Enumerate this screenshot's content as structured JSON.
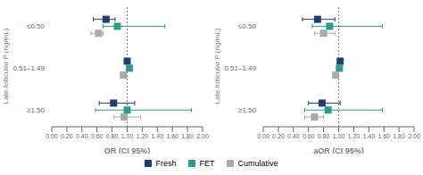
{
  "chart_data": [
    {
      "type": "scatter",
      "x_label": "OR (CI 95%)",
      "y_label": "Late-follicular P (ng/mL)",
      "categories": [
        "≤0.50",
        "0.51–1.49",
        "≥1.50"
      ],
      "series": [
        {
          "name": "Fresh",
          "color": "#1f3f6e",
          "marker": "square",
          "values": [
            0.72,
            1.0,
            0.82
          ],
          "ci_low": [
            0.55,
            1.0,
            0.63
          ],
          "ci_high": [
            0.84,
            1.0,
            1.1
          ]
        },
        {
          "name": "FET",
          "color": "#2a9d8f",
          "marker": "square",
          "values": [
            0.87,
            1.03,
            1.0
          ],
          "ci_low": [
            0.68,
            1.03,
            0.58
          ],
          "ci_high": [
            1.5,
            1.03,
            1.85
          ]
        },
        {
          "name": "Cumulative",
          "color": "#aaaaaa",
          "marker": "square",
          "values": [
            0.62,
            0.95,
            0.96
          ],
          "ci_low": [
            0.52,
            0.95,
            0.82
          ],
          "ci_high": [
            0.68,
            0.95,
            1.18
          ]
        }
      ],
      "ref_line": 1.0,
      "xlim": [
        0.0,
        2.0
      ],
      "xticks": [
        {
          "value": 0.0,
          "label": "0.00"
        },
        {
          "value": 0.2,
          "label": "0.20"
        },
        {
          "value": 0.4,
          "label": "0.40"
        },
        {
          "value": 0.6,
          "label": "0.60"
        },
        {
          "value": 0.8,
          "label": "0.80"
        },
        {
          "value": 1.0,
          "label": "1.00"
        },
        {
          "value": 1.2,
          "label": "1.20"
        },
        {
          "value": 1.4,
          "label": "1.40"
        },
        {
          "value": 1.6,
          "label": "1.60"
        },
        {
          "value": 1.8,
          "label": "1.80"
        },
        {
          "value": 2.0,
          "label": "2.00"
        }
      ],
      "grid": false,
      "legend": "bottom"
    },
    {
      "type": "scatter",
      "x_label": "aOR (CI 95%)",
      "y_label": "Late-follicular P (ng/mL)",
      "categories": [
        "≤0.50",
        "0.51–1.49",
        "≥1.50"
      ],
      "series": [
        {
          "name": "Fresh",
          "color": "#1f3f6e",
          "marker": "square",
          "values": [
            0.72,
            1.02,
            0.78
          ],
          "ci_low": [
            0.52,
            1.02,
            0.6
          ],
          "ci_high": [
            0.95,
            1.02,
            1.02
          ]
        },
        {
          "name": "FET",
          "color": "#2a9d8f",
          "marker": "square",
          "values": [
            0.88,
            1.01,
            0.86
          ],
          "ci_low": [
            0.65,
            1.01,
            0.55
          ],
          "ci_high": [
            1.58,
            1.01,
            1.58
          ]
        },
        {
          "name": "Cumulative",
          "color": "#aaaaaa",
          "marker": "square",
          "values": [
            0.8,
            0.96,
            0.68
          ],
          "ci_low": [
            0.68,
            0.96,
            0.55
          ],
          "ci_high": [
            0.95,
            0.96,
            0.8
          ]
        }
      ],
      "ref_line": 1.0,
      "xlim": [
        0.0,
        2.0
      ],
      "xticks": [
        {
          "value": 0.0,
          "label": "0.00"
        },
        {
          "value": 0.2,
          "label": "0.20"
        },
        {
          "value": 0.4,
          "label": "0.40"
        },
        {
          "value": 0.6,
          "label": "0.60"
        },
        {
          "value": 0.8,
          "label": "0.80"
        },
        {
          "value": 1.0,
          "label": "1.00"
        },
        {
          "value": 1.2,
          "label": "1.20"
        },
        {
          "value": 1.4,
          "label": "1.40"
        },
        {
          "value": 1.6,
          "label": "1.60"
        },
        {
          "value": 1.8,
          "label": "1.80"
        },
        {
          "value": 2.0,
          "label": "2.00"
        }
      ],
      "grid": false,
      "legend": "bottom"
    }
  ]
}
